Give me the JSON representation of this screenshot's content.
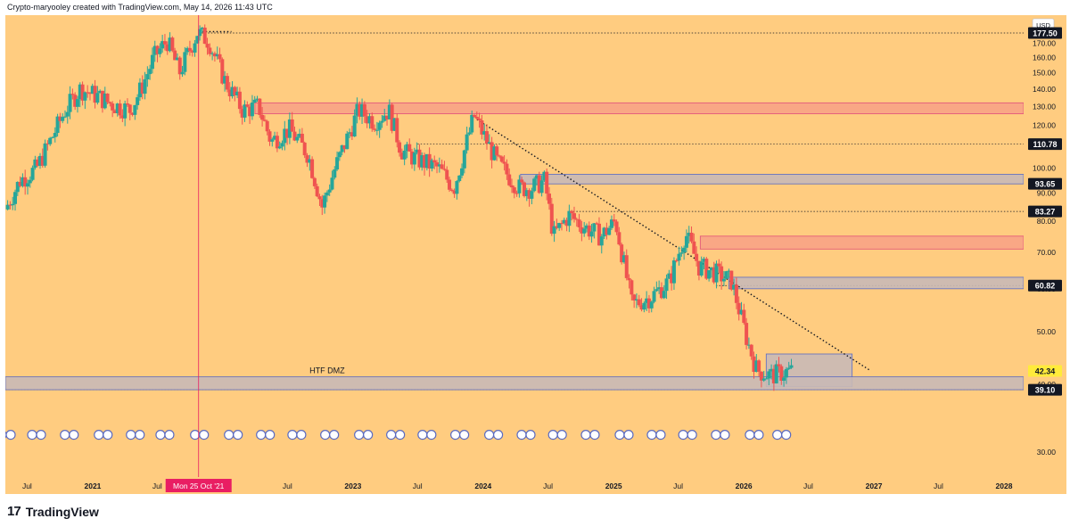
{
  "header": {
    "text": "Crypto-maryooley created with TradingView.com, May 14, 2026 11:43 UTC"
  },
  "footer": {
    "brand": "TradingView",
    "logo_glyph": "17"
  },
  "colors": {
    "background": "#ffcc80",
    "bull": "#26a69a",
    "bear": "#ef5350",
    "resistance_zone": "#f8a385",
    "support_zone": "#c9b9b6",
    "crosshair": "#e91e63",
    "axis_text": "#131722"
  },
  "chart_data": {
    "type": "candlestick",
    "currency_label": "USD",
    "y_axis": {
      "scale": "log",
      "ylim": [
        27,
        190
      ],
      "ticks": [
        30,
        40,
        50,
        60,
        70,
        80,
        90,
        100,
        110,
        120,
        130,
        140,
        150,
        160,
        170,
        180
      ]
    },
    "x_axis": {
      "ticks": [
        {
          "date": "2020-07-01",
          "label": "Jul"
        },
        {
          "date": "2021-01-01",
          "label": "2021"
        },
        {
          "date": "2021-07-01",
          "label": "Jul"
        },
        {
          "date": "2022-07-01",
          "label": "Jul"
        },
        {
          "date": "2023-01-01",
          "label": "2023"
        },
        {
          "date": "2023-07-01",
          "label": "Jul"
        },
        {
          "date": "2024-01-01",
          "label": "2024"
        },
        {
          "date": "2024-07-01",
          "label": "Jul"
        },
        {
          "date": "2025-01-01",
          "label": "2025"
        },
        {
          "date": "2025-07-01",
          "label": "Jul"
        },
        {
          "date": "2026-01-01",
          "label": "2026"
        },
        {
          "date": "2026-07-01",
          "label": "Jul"
        },
        {
          "date": "2027-01-01",
          "label": "2027"
        },
        {
          "date": "2027-07-01",
          "label": "Jul"
        },
        {
          "date": "2028-01-01",
          "label": "2028"
        }
      ],
      "range": [
        "2020-05-01",
        "2028-02-25"
      ]
    },
    "crosshair": {
      "date": "2021-10-25",
      "label": "Mon 25 Oct '21"
    },
    "candle_anchors": [
      [
        "2020-05-04",
        84
      ],
      [
        "2020-06-15",
        95
      ],
      [
        "2020-08-01",
        100
      ],
      [
        "2020-09-15",
        115
      ],
      [
        "2020-10-20",
        128
      ],
      [
        "2020-12-01",
        140
      ],
      [
        "2021-01-15",
        136
      ],
      [
        "2021-03-01",
        131
      ],
      [
        "2021-04-20",
        128
      ],
      [
        "2021-05-20",
        140
      ],
      [
        "2021-06-25",
        160
      ],
      [
        "2021-08-01",
        172
      ],
      [
        "2021-09-05",
        150
      ],
      [
        "2021-10-25",
        178
      ],
      [
        "2021-11-25",
        172
      ],
      [
        "2022-01-10",
        145
      ],
      [
        "2022-03-01",
        128
      ],
      [
        "2022-04-15",
        130
      ],
      [
        "2022-05-20",
        112
      ],
      [
        "2022-07-10",
        118
      ],
      [
        "2022-09-01",
        106
      ],
      [
        "2022-10-10",
        85
      ],
      [
        "2022-11-15",
        100
      ],
      [
        "2023-01-20",
        128
      ],
      [
        "2023-03-05",
        122
      ],
      [
        "2023-04-15",
        128
      ],
      [
        "2023-05-20",
        108
      ],
      [
        "2023-07-01",
        104
      ],
      [
        "2023-09-01",
        100
      ],
      [
        "2023-10-15",
        92
      ],
      [
        "2023-12-10",
        125
      ],
      [
        "2024-02-15",
        102
      ],
      [
        "2024-04-15",
        92
      ],
      [
        "2024-05-20",
        92
      ],
      [
        "2024-06-25",
        95
      ],
      [
        "2024-07-20",
        75
      ],
      [
        "2024-09-01",
        82
      ],
      [
        "2024-10-15",
        78
      ],
      [
        "2024-12-01",
        75
      ],
      [
        "2025-01-10",
        80
      ],
      [
        "2025-02-25",
        56
      ],
      [
        "2025-04-20",
        58
      ],
      [
        "2025-06-10",
        62
      ],
      [
        "2025-07-25",
        76
      ],
      [
        "2025-09-01",
        66
      ],
      [
        "2025-10-20",
        64
      ],
      [
        "2025-12-01",
        62
      ],
      [
        "2026-01-15",
        48
      ],
      [
        "2026-02-10",
        42.5
      ],
      [
        "2026-03-20",
        41.5
      ],
      [
        "2026-05-14",
        42.34
      ]
    ],
    "price_labels": [
      {
        "value": 177.5,
        "label": "177.50",
        "style": "dark"
      },
      {
        "value": 110.78,
        "label": "110.78",
        "style": "dark"
      },
      {
        "value": 93.65,
        "label": "93.65",
        "style": "dark"
      },
      {
        "value": 83.27,
        "label": "83.27",
        "style": "dark"
      },
      {
        "value": 60.82,
        "label": "60.82",
        "style": "dark"
      },
      {
        "value": 42.34,
        "label": "42.34",
        "style": "current"
      },
      {
        "value": 39.1,
        "label": "39.10",
        "style": "dark"
      }
    ],
    "horizontal_levels": [
      {
        "value": 177.5,
        "from": "2021-10-25"
      },
      {
        "value": 110.78,
        "from": "2023-07-01"
      },
      {
        "value": 83.27,
        "from": "2024-09-01"
      },
      {
        "value": 60.82,
        "from": "2025-10-15"
      },
      {
        "value": 39.1,
        "from": "2020-05-01"
      }
    ],
    "zones": [
      {
        "kind": "resistance",
        "x1": "2022-04-01",
        "x2": "2028-02-25",
        "y_low": 126,
        "y_high": 132
      },
      {
        "kind": "support",
        "x1": "2024-04-15",
        "x2": "2028-02-25",
        "y_low": 93.6,
        "y_high": 97.5
      },
      {
        "kind": "resistance",
        "x1": "2025-09-01",
        "x2": "2028-02-25",
        "y_low": 71,
        "y_high": 75
      },
      {
        "kind": "support",
        "x1": "2025-11-20",
        "x2": "2028-02-25",
        "y_low": 60,
        "y_high": 63
      },
      {
        "kind": "support",
        "x1": "2026-03-05",
        "x2": "2026-11-01",
        "y_low": 39.6,
        "y_high": 45.5
      },
      {
        "kind": "support",
        "x1": "2020-05-01",
        "x2": "2028-02-25",
        "y_low": 39.1,
        "y_high": 41.3
      }
    ],
    "trendlines": [
      {
        "from": [
          "2023-12-15",
          123
        ],
        "to": [
          "2026-12-20",
          42.5
        ],
        "style": "dotted"
      },
      {
        "from": [
          "2021-10-25",
          178.5
        ],
        "to": [
          "2022-01-25",
          178.5
        ],
        "style": "dotted"
      }
    ],
    "annotations": [
      {
        "text": "HTF DMZ",
        "date": "2022-09-01",
        "value": 41.8
      }
    ],
    "event_markers": {
      "value": 32.3,
      "dates": [
        "2020-05-01",
        "2020-07-25",
        "2020-10-25",
        "2021-01-28",
        "2021-04-28",
        "2021-07-20",
        "2021-10-25",
        "2022-01-28",
        "2022-04-28",
        "2022-07-25",
        "2022-10-25",
        "2023-01-28",
        "2023-04-28",
        "2023-07-25",
        "2023-10-25",
        "2024-01-28",
        "2024-04-28",
        "2024-07-25",
        "2024-10-25",
        "2025-01-28",
        "2025-04-28",
        "2025-07-25",
        "2025-10-25",
        "2026-01-28",
        "2026-04-15"
      ]
    }
  }
}
